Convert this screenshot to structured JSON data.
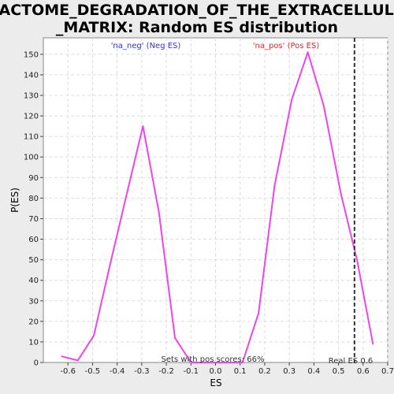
{
  "chart_data": {
    "type": "line",
    "title_line1": "REACTOME_DEGRADATION_OF_THE_EXTRACELLULAR",
    "title_line2": "_MATRIX: Random ES distribution",
    "xlabel": "ES",
    "ylabel": "P(ES)",
    "xlim": [
      -0.7,
      0.7
    ],
    "ylim": [
      0,
      158
    ],
    "xticks": [
      -0.6,
      -0.5,
      -0.4,
      -0.3,
      -0.2,
      -0.1,
      0.0,
      0.1,
      0.2,
      0.3,
      0.4,
      0.5,
      0.6,
      0.7
    ],
    "xtick_labels": [
      "-0.6",
      "-0.5",
      "-0.4",
      "-0.3",
      "-0.2",
      "-0.1",
      "0.0",
      "0.1",
      "0.2",
      "0.3",
      "0.4",
      "0.5",
      "0.6",
      "0.7"
    ],
    "yticks": [
      0,
      10,
      20,
      30,
      40,
      50,
      60,
      70,
      80,
      90,
      100,
      110,
      120,
      130,
      140,
      150
    ],
    "grid": true,
    "series": [
      {
        "color": "#ee44ee",
        "x": [
          -0.625,
          -0.56,
          -0.495,
          -0.43,
          -0.365,
          -0.295,
          -0.23,
          -0.165,
          -0.1,
          -0.035,
          0.03,
          0.11,
          0.175,
          0.24,
          0.31,
          0.375,
          0.44,
          0.51,
          0.575,
          0.64
        ],
        "y": [
          3,
          1,
          13,
          47,
          80,
          115,
          73,
          12,
          0,
          0,
          0,
          0,
          24,
          86,
          128,
          151,
          125,
          82,
          50,
          9
        ]
      }
    ],
    "legend": {
      "neg": "'na_neg' (Neg ES)",
      "pos": "'na_pos' (Pos ES)"
    },
    "real_es": {
      "value": 0.565,
      "label": "Real ES 0.6",
      "style": "dashed"
    },
    "annotation": "Sets with pos scores: 66%"
  }
}
